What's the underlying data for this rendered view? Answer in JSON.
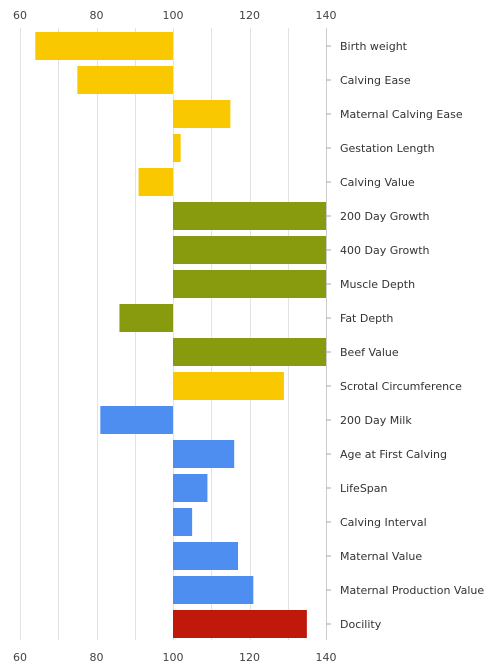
{
  "chart_data": {
    "type": "bar",
    "orientation": "horizontal",
    "baseline": 100,
    "xlim": [
      60,
      140
    ],
    "xticks": [
      60,
      80,
      100,
      120,
      140
    ],
    "x_tick_labels_position": "top and bottom",
    "category_labels_position": "right",
    "grid": true,
    "categories": [
      "Birth weight",
      "Calving Ease",
      "Maternal Calving Ease",
      "Gestation Length",
      "Calving Value",
      "200 Day Growth",
      "400 Day Growth",
      "Muscle Depth",
      "Fat Depth",
      "Beef Value",
      "Scrotal Circumference",
      "200 Day Milk",
      "Age at First Calving",
      "LifeSpan",
      "Calving Interval",
      "Maternal Value",
      "Maternal Production Value",
      "Docility"
    ],
    "values": [
      64,
      75,
      115,
      102,
      91,
      140,
      140,
      140,
      86,
      140,
      129,
      81,
      116,
      109,
      105,
      117,
      121,
      135
    ],
    "bar_colors": [
      "#fac800",
      "#fac800",
      "#fac800",
      "#fac800",
      "#fac800",
      "#889a0d",
      "#889a0d",
      "#889a0d",
      "#889a0d",
      "#889a0d",
      "#fac800",
      "#4d8ef0",
      "#4d8ef0",
      "#4d8ef0",
      "#4d8ef0",
      "#4d8ef0",
      "#4d8ef0",
      "#c0190b"
    ]
  }
}
